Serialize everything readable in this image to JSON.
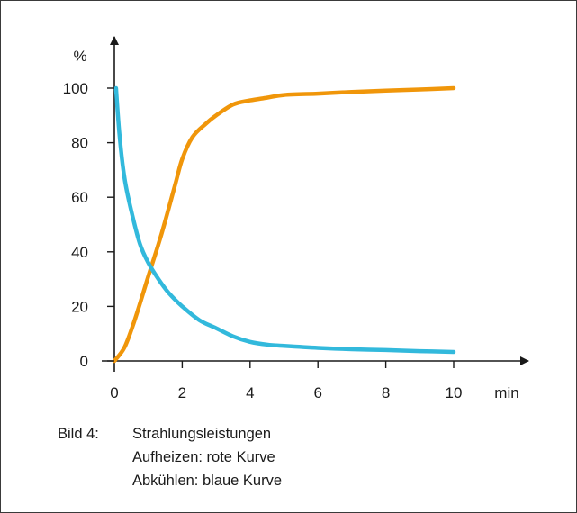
{
  "chart_data": {
    "type": "line",
    "y_unit_label": "%",
    "x_unit_label": "min",
    "xlim": [
      0,
      10
    ],
    "ylim": [
      0,
      100
    ],
    "x_ticks": [
      0,
      2,
      4,
      6,
      8,
      10
    ],
    "y_ticks": [
      0,
      20,
      40,
      60,
      80,
      100
    ],
    "grid": false,
    "series": [
      {
        "key": "aufheizen",
        "color": "#f0960a",
        "x": [
          0,
          0.3,
          0.6,
          1.0,
          1.4,
          1.8,
          2.0,
          2.3,
          2.7,
          3.0,
          3.5,
          4.0,
          4.5,
          5.0,
          6.0,
          7.0,
          8.0,
          9.0,
          10.0
        ],
        "y": [
          0,
          5,
          15,
          31,
          47,
          65,
          74,
          82,
          87,
          90,
          94,
          95.5,
          96.5,
          97.5,
          98,
          98.6,
          99.1,
          99.5,
          100
        ]
      },
      {
        "key": "abkuehlen",
        "color": "#32b9dc",
        "x": [
          0.05,
          0.15,
          0.3,
          0.5,
          0.75,
          1.0,
          1.3,
          1.6,
          2.0,
          2.5,
          3.0,
          3.5,
          4.0,
          4.5,
          5.0,
          6.0,
          7.0,
          8.0,
          9.0,
          10.0
        ],
        "y": [
          100,
          83,
          67,
          55,
          43,
          36,
          30,
          25,
          20,
          15,
          12,
          9,
          7,
          6,
          5.5,
          4.8,
          4.3,
          4,
          3.6,
          3.3
        ]
      }
    ]
  },
  "caption": {
    "label": "Bild 4:",
    "title": "Strahlungsleistungen",
    "line_heating": "Aufheizen: rote Kurve",
    "line_cooling": "Abkühlen: blaue Kurve"
  }
}
